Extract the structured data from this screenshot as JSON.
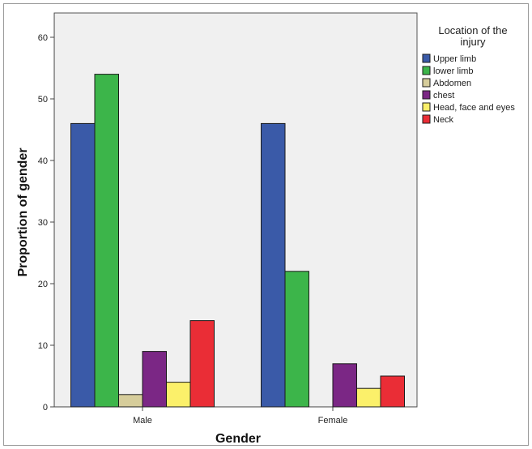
{
  "chart_data": {
    "type": "bar",
    "xlabel": "Gender",
    "ylabel": "Proportion of gender",
    "ylim": [
      0,
      60
    ],
    "yticks": [
      0,
      10,
      20,
      30,
      40,
      50,
      60
    ],
    "categories": [
      "Male",
      "Female"
    ],
    "legend": {
      "title_lines": [
        "Location of the",
        "injury"
      ],
      "placement": "right"
    },
    "series": [
      {
        "name": "Upper limb",
        "color": "#3a5aa8",
        "values": [
          46,
          46
        ]
      },
      {
        "name": "lower limb",
        "color": "#3cb54a",
        "values": [
          54,
          22
        ]
      },
      {
        "name": "Abdomen",
        "color": "#d6cd9b",
        "values": [
          2,
          0
        ]
      },
      {
        "name": "chest",
        "color": "#7b2785",
        "values": [
          9,
          7
        ]
      },
      {
        "name": "Head, face and eyes",
        "color": "#fbf06a",
        "values": [
          4,
          3
        ]
      },
      {
        "name": "Neck",
        "color": "#ea2d36",
        "values": [
          14,
          5
        ]
      }
    ],
    "plot_background": "#f0f0f0",
    "grid": false
  }
}
